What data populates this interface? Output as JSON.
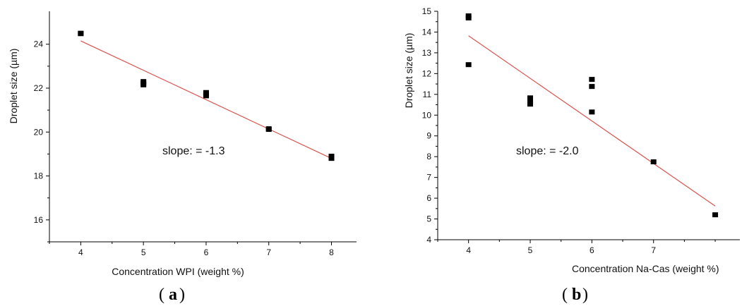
{
  "chart_data": [
    {
      "type": "scatter",
      "panel_label": "(a)",
      "panel_letter": "a",
      "xlabel": "Concentration WPI (weight %)",
      "ylabel": "Droplet size (µm)",
      "xlim": [
        3.5,
        8.4
      ],
      "ylim": [
        15,
        25.5
      ],
      "xticks": [
        4,
        5,
        6,
        7,
        8
      ],
      "yticks": [
        16,
        18,
        20,
        22,
        24
      ],
      "series": [
        {
          "x": [
            4,
            4,
            5,
            5,
            5,
            6,
            6,
            6,
            7,
            7,
            8,
            8,
            8
          ],
          "y": [
            24.5,
            24.48,
            22.3,
            22.22,
            22.15,
            21.8,
            21.72,
            21.65,
            20.15,
            20.12,
            18.9,
            18.85,
            18.8
          ]
        }
      ],
      "fit_line": {
        "x": [
          4,
          8
        ],
        "y": [
          24.15,
          18.8
        ],
        "color": "#d9534f"
      },
      "marker_color": "#000000",
      "annotation": "slope: = -1.3",
      "grid": false
    },
    {
      "type": "scatter",
      "panel_label": "(b)",
      "panel_letter": "b",
      "xlabel": "Concentration Na-Cas (weight %)",
      "ylabel": "Droplet size (µm)",
      "xlim": [
        3.5,
        8.4
      ],
      "ylim": [
        4,
        15
      ],
      "xticks": [
        4,
        5,
        6,
        7
      ],
      "yticks": [
        4,
        5,
        6,
        7,
        8,
        9,
        10,
        11,
        12,
        13,
        14,
        15
      ],
      "series": [
        {
          "x": [
            4,
            4,
            4,
            5,
            5,
            5,
            6,
            6,
            6,
            7,
            8
          ],
          "y": [
            14.78,
            14.68,
            12.43,
            10.83,
            10.68,
            10.53,
            11.72,
            11.38,
            10.15,
            7.75,
            5.2
          ]
        }
      ],
      "fit_line": {
        "x": [
          4,
          8
        ],
        "y": [
          13.82,
          5.62
        ],
        "color": "#d9534f"
      },
      "marker_color": "#000000",
      "annotation": "slope: = -2.0",
      "grid": false
    }
  ]
}
